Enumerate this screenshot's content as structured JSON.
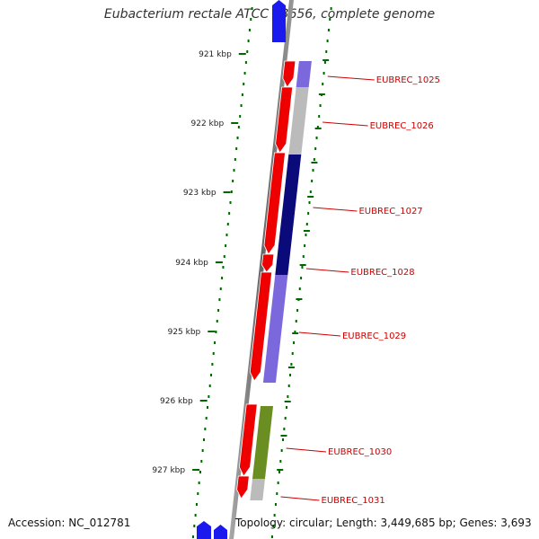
{
  "title": "Eubacterium rectale ATCC 33656, complete genome",
  "accession": "Accession: NC_012781",
  "topology": "Topology: circular; Length: 3,449,685 bp; Genes: 3,693",
  "colors": {
    "backbone": "#888888",
    "forward_strand_gene": "#ee0000",
    "flank_gene": "#1a1aee",
    "hit_light_purple": "#7b68dd",
    "hit_gray": "#bbbbbb",
    "hit_navy": "#0a0a7a",
    "hit_olive": "#6b8e23",
    "tick_green": "#006600",
    "label_red": "#cc0000"
  },
  "ruler": [
    {
      "label": "921 kbp"
    },
    {
      "label": "922 kbp"
    },
    {
      "label": "923 kbp"
    },
    {
      "label": "924 kbp"
    },
    {
      "label": "925 kbp"
    },
    {
      "label": "926 kbp"
    },
    {
      "label": "927 kbp"
    }
  ],
  "genes": [
    {
      "label": "EUBREC_1025",
      "strand": "+",
      "hit": "light-purple"
    },
    {
      "label": "EUBREC_1026",
      "strand": "+",
      "hit": "gray"
    },
    {
      "label": "EUBREC_1027",
      "strand": "+",
      "hit": "navy"
    },
    {
      "label": "EUBREC_1028",
      "strand": "+",
      "hit": "navy"
    },
    {
      "label": "EUBREC_1029",
      "strand": "+",
      "hit": "light-purple"
    },
    {
      "label": "EUBREC_1030",
      "strand": "+",
      "hit": "olive"
    },
    {
      "label": "EUBREC_1031",
      "strand": "+",
      "hit": "gray"
    }
  ]
}
